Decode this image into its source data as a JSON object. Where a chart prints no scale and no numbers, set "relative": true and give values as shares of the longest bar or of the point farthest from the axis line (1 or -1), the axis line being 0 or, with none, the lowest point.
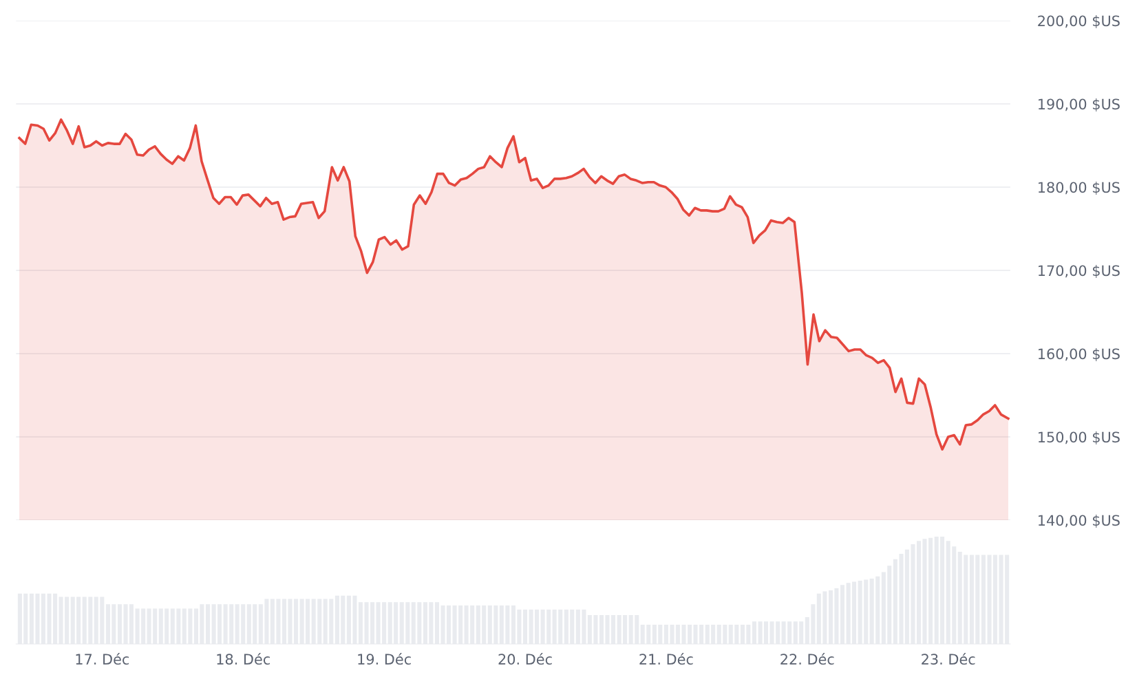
{
  "chart_data": [
    {
      "type": "area",
      "color": "#e5483f",
      "grid": "y",
      "tick_labels": "y",
      "xlim": [
        16.39,
        23.44
      ],
      "ylim": [
        140,
        200
      ],
      "yticks": [
        {
          "value": 140,
          "label": "140,00 $US"
        },
        {
          "value": 150,
          "label": "150,00 $US"
        },
        {
          "value": 160,
          "label": "160,00 $US"
        },
        {
          "value": 170,
          "label": "170,00 $US"
        },
        {
          "value": 180,
          "label": "180,00 $US"
        },
        {
          "value": 190,
          "label": "190,00 $US"
        },
        {
          "value": 200,
          "label": "200,00 $US"
        }
      ],
      "x": [
        16.413,
        16.455,
        16.497,
        16.543,
        16.585,
        16.626,
        16.668,
        16.709,
        16.751,
        16.792,
        16.834,
        16.875,
        16.917,
        16.958,
        17.0,
        17.042,
        17.083,
        17.125,
        17.166,
        17.208,
        17.249,
        17.291,
        17.332,
        17.374,
        17.415,
        17.457,
        17.498,
        17.54,
        17.581,
        17.623,
        17.664,
        17.706,
        17.747,
        17.789,
        17.83,
        17.872,
        17.913,
        17.955,
        17.997,
        18.038,
        18.08,
        18.121,
        18.163,
        18.204,
        18.246,
        18.287,
        18.329,
        18.37,
        18.412,
        18.453,
        18.495,
        18.536,
        18.578,
        18.63,
        18.671,
        18.713,
        18.754,
        18.796,
        18.837,
        18.879,
        18.92,
        18.962,
        19.003,
        19.045,
        19.086,
        19.128,
        19.17,
        19.211,
        19.253,
        19.294,
        19.336,
        19.377,
        19.419,
        19.46,
        19.502,
        19.543,
        19.585,
        19.626,
        19.668,
        19.709,
        19.751,
        19.792,
        19.834,
        19.875,
        19.917,
        19.958,
        20.0,
        20.042,
        20.083,
        20.125,
        20.166,
        20.208,
        20.249,
        20.291,
        20.332,
        20.374,
        20.415,
        20.457,
        20.498,
        20.54,
        20.581,
        20.623,
        20.664,
        20.706,
        20.747,
        20.789,
        20.83,
        20.872,
        20.913,
        20.955,
        20.997,
        21.038,
        21.08,
        21.121,
        21.163,
        21.204,
        21.246,
        21.287,
        21.329,
        21.37,
        21.412,
        21.453,
        21.495,
        21.536,
        21.578,
        21.619,
        21.661,
        21.702,
        21.744,
        21.785,
        21.827,
        21.868,
        21.91,
        21.962,
        22.003,
        22.045,
        22.086,
        22.128,
        22.17,
        22.211,
        22.253,
        22.294,
        22.336,
        22.377,
        22.419,
        22.46,
        22.502,
        22.543,
        22.585,
        22.626,
        22.668,
        22.709,
        22.751,
        22.792,
        22.834,
        22.875,
        22.917,
        22.958,
        23.0,
        23.042,
        23.083,
        23.125,
        23.166,
        23.208,
        23.249,
        23.291,
        23.332,
        23.374,
        23.426
      ],
      "values": [
        185.9,
        185.2,
        187.5,
        187.4,
        187.0,
        185.6,
        186.5,
        188.1,
        186.8,
        185.2,
        187.3,
        184.8,
        185.0,
        185.5,
        185.0,
        185.3,
        185.2,
        185.2,
        186.4,
        185.7,
        183.9,
        183.8,
        184.5,
        184.9,
        184.0,
        183.3,
        182.8,
        183.7,
        183.2,
        184.7,
        187.4,
        183.1,
        180.9,
        178.7,
        178.0,
        178.8,
        178.8,
        177.9,
        179.0,
        179.1,
        178.4,
        177.7,
        178.7,
        178.0,
        178.2,
        176.1,
        176.4,
        176.5,
        178.0,
        178.1,
        178.2,
        176.3,
        177.1,
        182.4,
        180.8,
        182.4,
        180.7,
        174.1,
        172.3,
        169.7,
        171.0,
        173.7,
        174.0,
        173.1,
        173.6,
        172.5,
        172.9,
        177.9,
        179.0,
        178.0,
        179.4,
        181.6,
        181.6,
        180.5,
        180.2,
        180.9,
        181.1,
        181.6,
        182.2,
        182.4,
        183.7,
        183.0,
        182.4,
        184.7,
        186.1,
        183.0,
        183.5,
        180.8,
        181.0,
        179.9,
        180.2,
        181.0,
        181.0,
        181.1,
        181.3,
        181.7,
        182.2,
        181.2,
        180.5,
        181.3,
        180.8,
        180.4,
        181.3,
        181.5,
        181.0,
        180.8,
        180.5,
        180.6,
        180.6,
        180.2,
        180.0,
        179.4,
        178.6,
        177.3,
        176.6,
        177.5,
        177.2,
        177.2,
        177.1,
        177.1,
        177.4,
        178.9,
        177.9,
        177.6,
        176.4,
        173.3,
        174.2,
        174.8,
        176.0,
        175.8,
        175.7,
        176.3,
        175.8,
        167.3,
        158.7,
        164.7,
        161.5,
        162.8,
        162.0,
        161.9,
        161.1,
        160.3,
        160.5,
        160.5,
        159.8,
        159.5,
        158.9,
        159.2,
        158.3,
        155.4,
        157.0,
        154.1,
        154.0,
        157.0,
        156.3,
        153.6,
        150.3,
        148.5,
        150.0,
        150.2,
        149.1,
        151.4,
        151.5,
        152.0,
        152.7,
        153.1,
        153.8,
        152.7,
        152.2
      ]
    },
    {
      "type": "bar",
      "relative": true,
      "color": "#e9ebef",
      "tick_labels": "x",
      "xlim": [
        16.39,
        23.44
      ],
      "xticks": [
        {
          "value": 17,
          "label": "17. Déc"
        },
        {
          "value": 18,
          "label": "18. Déc"
        },
        {
          "value": 19,
          "label": "19. Déc"
        },
        {
          "value": 20,
          "label": "20. Déc"
        },
        {
          "value": 21,
          "label": "21. Déc"
        },
        {
          "value": 22,
          "label": "22. Déc"
        },
        {
          "value": 23,
          "label": "23. Déc"
        }
      ],
      "x": [
        16.417,
        16.458,
        16.5,
        16.542,
        16.583,
        16.625,
        16.667,
        16.708,
        16.75,
        16.792,
        16.833,
        16.875,
        16.917,
        16.958,
        17,
        17.042,
        17.083,
        17.125,
        17.167,
        17.208,
        17.25,
        17.292,
        17.333,
        17.375,
        17.417,
        17.458,
        17.5,
        17.542,
        17.583,
        17.625,
        17.667,
        17.708,
        17.75,
        17.792,
        17.833,
        17.875,
        17.917,
        17.958,
        18,
        18.042,
        18.083,
        18.125,
        18.167,
        18.208,
        18.25,
        18.292,
        18.333,
        18.375,
        18.417,
        18.458,
        18.5,
        18.542,
        18.583,
        18.625,
        18.667,
        18.708,
        18.75,
        18.792,
        18.833,
        18.875,
        18.917,
        18.958,
        19,
        19.042,
        19.083,
        19.125,
        19.167,
        19.208,
        19.25,
        19.292,
        19.333,
        19.375,
        19.417,
        19.458,
        19.5,
        19.542,
        19.583,
        19.625,
        19.667,
        19.708,
        19.75,
        19.792,
        19.833,
        19.875,
        19.917,
        19.958,
        20,
        20.042,
        20.083,
        20.125,
        20.167,
        20.208,
        20.25,
        20.292,
        20.333,
        20.375,
        20.417,
        20.458,
        20.5,
        20.542,
        20.583,
        20.625,
        20.667,
        20.708,
        20.75,
        20.792,
        20.833,
        20.875,
        20.917,
        20.958,
        21,
        21.042,
        21.083,
        21.125,
        21.167,
        21.208,
        21.25,
        21.292,
        21.333,
        21.375,
        21.417,
        21.458,
        21.5,
        21.542,
        21.583,
        21.625,
        21.667,
        21.708,
        21.75,
        21.792,
        21.833,
        21.875,
        21.917,
        21.958,
        22,
        22.042,
        22.083,
        22.125,
        22.167,
        22.208,
        22.25,
        22.292,
        22.333,
        22.375,
        22.417,
        22.458,
        22.5,
        22.542,
        22.583,
        22.625,
        22.667,
        22.708,
        22.75,
        22.792,
        22.833,
        22.875,
        22.917,
        22.958,
        23,
        23.042,
        23.083,
        23.125,
        23.167,
        23.208,
        23.25,
        23.292,
        23.333,
        23.375,
        23.417
      ],
      "values": [
        0.47,
        0.47,
        0.47,
        0.47,
        0.47,
        0.47,
        0.47,
        0.44,
        0.44,
        0.44,
        0.44,
        0.44,
        0.44,
        0.44,
        0.44,
        0.37,
        0.37,
        0.37,
        0.37,
        0.37,
        0.33,
        0.33,
        0.33,
        0.33,
        0.33,
        0.33,
        0.33,
        0.33,
        0.33,
        0.33,
        0.33,
        0.37,
        0.37,
        0.37,
        0.37,
        0.37,
        0.37,
        0.37,
        0.37,
        0.37,
        0.37,
        0.37,
        0.42,
        0.42,
        0.42,
        0.42,
        0.42,
        0.42,
        0.42,
        0.42,
        0.42,
        0.42,
        0.42,
        0.42,
        0.45,
        0.45,
        0.45,
        0.45,
        0.39,
        0.39,
        0.39,
        0.39,
        0.39,
        0.39,
        0.39,
        0.39,
        0.39,
        0.39,
        0.39,
        0.39,
        0.39,
        0.39,
        0.36,
        0.36,
        0.36,
        0.36,
        0.36,
        0.36,
        0.36,
        0.36,
        0.36,
        0.36,
        0.36,
        0.36,
        0.36,
        0.32,
        0.32,
        0.32,
        0.32,
        0.32,
        0.32,
        0.32,
        0.32,
        0.32,
        0.32,
        0.32,
        0.32,
        0.27,
        0.27,
        0.27,
        0.27,
        0.27,
        0.27,
        0.27,
        0.27,
        0.27,
        0.18,
        0.18,
        0.18,
        0.18,
        0.18,
        0.18,
        0.18,
        0.18,
        0.18,
        0.18,
        0.18,
        0.18,
        0.18,
        0.18,
        0.18,
        0.18,
        0.18,
        0.18,
        0.18,
        0.21,
        0.21,
        0.21,
        0.21,
        0.21,
        0.21,
        0.21,
        0.21,
        0.21,
        0.25,
        0.37,
        0.47,
        0.49,
        0.5,
        0.52,
        0.55,
        0.57,
        0.58,
        0.59,
        0.6,
        0.61,
        0.63,
        0.67,
        0.73,
        0.79,
        0.84,
        0.88,
        0.93,
        0.96,
        0.98,
        0.99,
        1.0,
        1.0,
        0.96,
        0.91,
        0.86,
        0.83,
        0.83,
        0.83,
        0.83,
        0.83,
        0.83,
        0.83,
        0.83
      ]
    }
  ]
}
